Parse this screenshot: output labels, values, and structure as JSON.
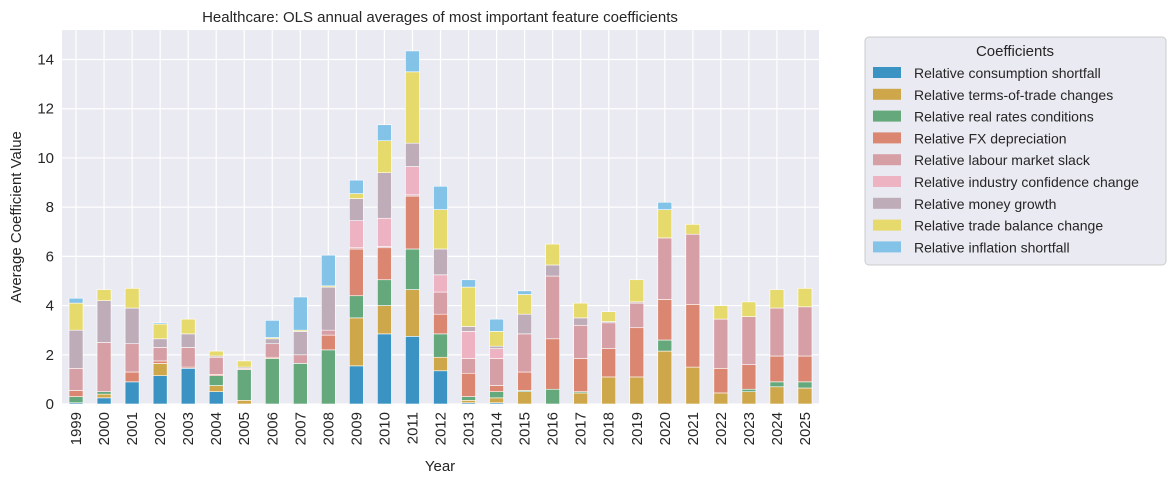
{
  "chart_data": {
    "type": "bar",
    "stacked": true,
    "title": "Healthcare: OLS annual averages of most important feature coefficients",
    "xlabel": "Year",
    "ylabel": "Average Coefficient Value",
    "ylim": [
      0,
      15.2
    ],
    "yticks": [
      0,
      2,
      4,
      6,
      8,
      10,
      12,
      14
    ],
    "grid": true,
    "legend_title": "Coefficients",
    "legend_position": "outside-right",
    "categories": [
      "1999",
      "2000",
      "2001",
      "2002",
      "2003",
      "2004",
      "2005",
      "2006",
      "2007",
      "2008",
      "2009",
      "2010",
      "2011",
      "2012",
      "2013",
      "2014",
      "2015",
      "2016",
      "2017",
      "2018",
      "2019",
      "2020",
      "2021",
      "2022",
      "2023",
      "2024",
      "2025"
    ],
    "series": [
      {
        "name": "Relative consumption shortfall",
        "color": "#3A93C3",
        "values": [
          0.05,
          0.25,
          0.9,
          1.15,
          1.45,
          0.5,
          0,
          0,
          0,
          0,
          1.55,
          2.85,
          2.75,
          1.35,
          0.05,
          0.05,
          0,
          0,
          0,
          0,
          0,
          0,
          0,
          0,
          0,
          0,
          0
        ]
      },
      {
        "name": "Relative terms-of-trade changes",
        "color": "#CFA74B",
        "values": [
          0,
          0.15,
          0,
          0.5,
          0,
          0.25,
          0.15,
          0,
          0,
          0,
          1.95,
          1.15,
          1.9,
          0.55,
          0.1,
          0.2,
          0.5,
          0,
          0.45,
          1.1,
          1.1,
          2.15,
          1.5,
          0.45,
          0.5,
          0.7,
          0.65
        ]
      },
      {
        "name": "Relative real rates conditions",
        "color": "#65A87C",
        "values": [
          0.25,
          0.1,
          0,
          0,
          0,
          0.4,
          1.25,
          1.85,
          1.65,
          2.2,
          0.9,
          1.05,
          1.65,
          0.95,
          0.15,
          0.25,
          0.05,
          0.6,
          0.05,
          0,
          0,
          0.45,
          0,
          0,
          0.1,
          0.2,
          0.25
        ]
      },
      {
        "name": "Relative FX depreciation",
        "color": "#DA8670",
        "values": [
          0.25,
          0,
          0.4,
          0.1,
          0.05,
          0.05,
          0,
          0.05,
          0,
          0.6,
          1.9,
          1.3,
          2.15,
          0.8,
          0.95,
          0.25,
          0.75,
          2.05,
          1.35,
          1.15,
          2.0,
          1.65,
          2.55,
          1.0,
          1.0,
          1.05,
          1.05
        ]
      },
      {
        "name": "Relative labour market slack",
        "color": "#D69FA6",
        "values": [
          0.9,
          2.0,
          1.15,
          0.55,
          0.8,
          0.7,
          0.05,
          0.55,
          0.35,
          0.2,
          0.05,
          0.05,
          0.05,
          0.9,
          0.6,
          1.1,
          1.55,
          2.55,
          1.35,
          1.05,
          1.0,
          2.5,
          2.85,
          2.0,
          1.95,
          1.95,
          2.0
        ]
      },
      {
        "name": "Relative industry confidence change",
        "color": "#EDB3C2",
        "values": [
          0,
          0,
          0,
          0,
          0,
          0,
          0,
          0,
          0,
          0,
          1.1,
          1.15,
          1.15,
          0.7,
          1.1,
          0.4,
          0,
          0,
          0,
          0,
          0,
          0,
          0,
          0,
          0,
          0,
          0
        ]
      },
      {
        "name": "Relative money growth",
        "color": "#BEADB9",
        "values": [
          1.55,
          1.7,
          1.45,
          0.35,
          0.55,
          0.05,
          0.05,
          0.2,
          0.95,
          1.75,
          0.9,
          1.85,
          0.95,
          1.05,
          0.2,
          0.1,
          0.8,
          0.45,
          0.3,
          0.05,
          0.05,
          0,
          0,
          0,
          0,
          0,
          0
        ]
      },
      {
        "name": "Relative trade balance change",
        "color": "#E6DA6C",
        "values": [
          1.1,
          0.45,
          0.8,
          0.6,
          0.6,
          0.2,
          0.25,
          0.05,
          0.05,
          0.05,
          0.2,
          1.3,
          2.9,
          1.6,
          1.6,
          0.6,
          0.8,
          0.85,
          0.6,
          0.4,
          0.9,
          1.15,
          0.4,
          0.55,
          0.6,
          0.75,
          0.75
        ]
      },
      {
        "name": "Relative inflation shortfall",
        "color": "#84C3E8",
        "values": [
          0.2,
          0,
          0,
          0.05,
          0,
          0,
          0,
          0.7,
          1.35,
          1.25,
          0.55,
          0.65,
          0.85,
          0.95,
          0.3,
          0.5,
          0.15,
          0,
          0,
          0,
          0,
          0.3,
          0,
          0,
          0,
          0,
          0
        ]
      }
    ]
  }
}
